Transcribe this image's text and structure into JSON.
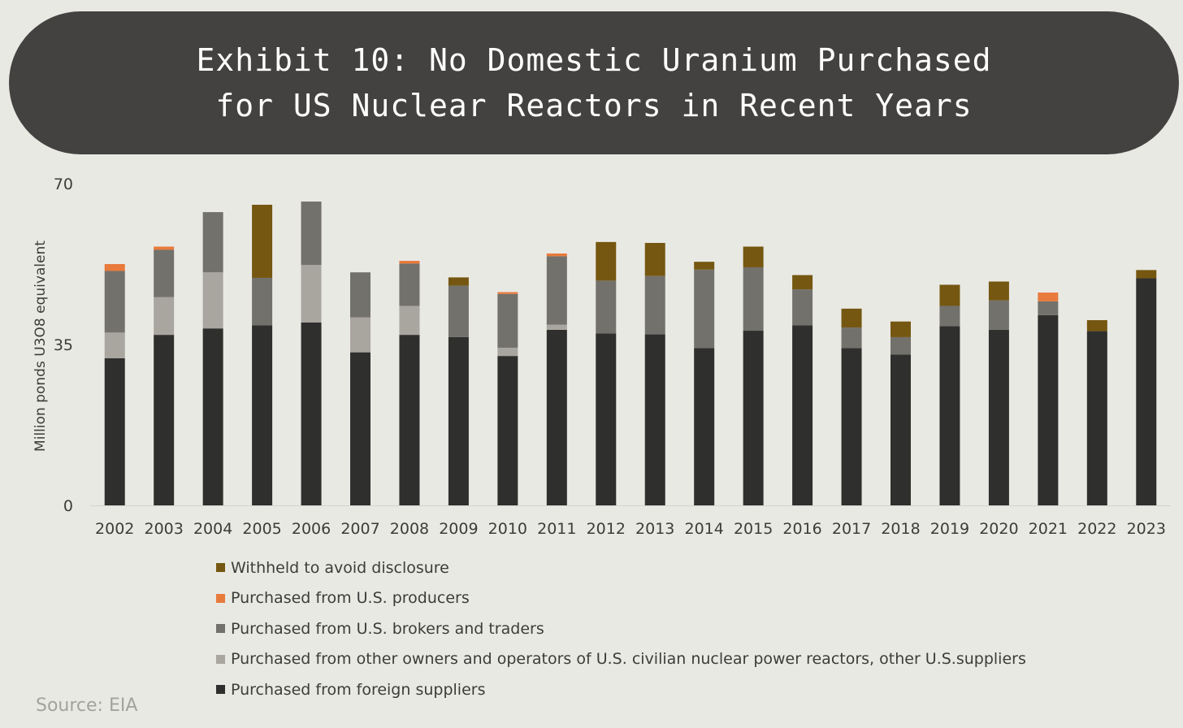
{
  "title": {
    "line1": "Exhibit 10: No Domestic Uranium Purchased",
    "line2": "for US Nuclear Reactors in Recent Years"
  },
  "source": "Source: EIA",
  "chart_data": {
    "type": "stacked-bar",
    "ylabel": "Million ponds U3O8 equivalent",
    "ylim": [
      0,
      70
    ],
    "yticks": [
      "0",
      "35",
      "70"
    ],
    "categories": [
      "2002",
      "2003",
      "2004",
      "2005",
      "2006",
      "2007",
      "2008",
      "2009",
      "2010",
      "2011",
      "2012",
      "2013",
      "2014",
      "2015",
      "2016",
      "2017",
      "2018",
      "2019",
      "2020",
      "2021",
      "2022",
      "2023"
    ],
    "series": [
      {
        "name": "Purchased from foreign suppliers",
        "color": "#2f2f2d",
        "values": [
          32.0,
          37.1,
          38.5,
          39.2,
          39.8,
          33.3,
          37.1,
          36.6,
          32.5,
          38.2,
          37.4,
          37.2,
          34.2,
          38.0,
          39.2,
          34.2,
          32.8,
          39.0,
          38.2,
          41.4,
          37.9,
          49.4
        ]
      },
      {
        "name": "Purchased from other owners and operators of U.S. civilian nuclear power reactors, other U.S.suppliers",
        "color": "#a9a59f",
        "values": [
          5.6,
          8.2,
          12.2,
          0,
          12.5,
          7.6,
          6.3,
          0,
          1.8,
          1.1,
          0,
          0,
          0,
          0,
          0,
          0,
          0,
          0,
          0,
          0,
          0,
          0
        ]
      },
      {
        "name": "Purchased from U.S. brokers and traders",
        "color": "#73716c",
        "values": [
          13.4,
          10.3,
          13.1,
          10.3,
          13.8,
          9.8,
          9.2,
          11.2,
          11.7,
          14.9,
          11.5,
          12.7,
          17.1,
          13.8,
          7.8,
          4.5,
          3.8,
          4.4,
          6.4,
          3.0,
          0,
          0
        ]
      },
      {
        "name": "Purchased from U.S. producers",
        "color": "#e87a3c",
        "values": [
          1.5,
          0.7,
          0,
          0,
          0,
          0,
          0.6,
          0,
          0.4,
          0.6,
          0,
          0,
          0,
          0,
          0,
          0,
          0,
          0,
          0,
          1.9,
          0,
          0
        ]
      },
      {
        "name": "Withheld to avoid disclosure",
        "color": "#755711",
        "values": [
          0,
          0,
          0,
          15.9,
          0,
          0,
          0,
          1.8,
          0,
          0,
          8.4,
          7.2,
          1.7,
          4.5,
          3.1,
          4.1,
          3.4,
          4.6,
          4.1,
          0,
          2.4,
          1.8
        ]
      }
    ]
  },
  "legend": [
    {
      "label": "Withheld to avoid disclosure",
      "color": "#755711"
    },
    {
      "label": "Purchased from U.S. producers",
      "color": "#e87a3c"
    },
    {
      "label": "Purchased from U.S. brokers and traders",
      "color": "#73716c"
    },
    {
      "label": "Purchased from other owners and operators of U.S. civilian nuclear power reactors, other U.S.suppliers",
      "color": "#a9a59f"
    },
    {
      "label": "Purchased from foreign suppliers",
      "color": "#2f2f2d"
    }
  ]
}
